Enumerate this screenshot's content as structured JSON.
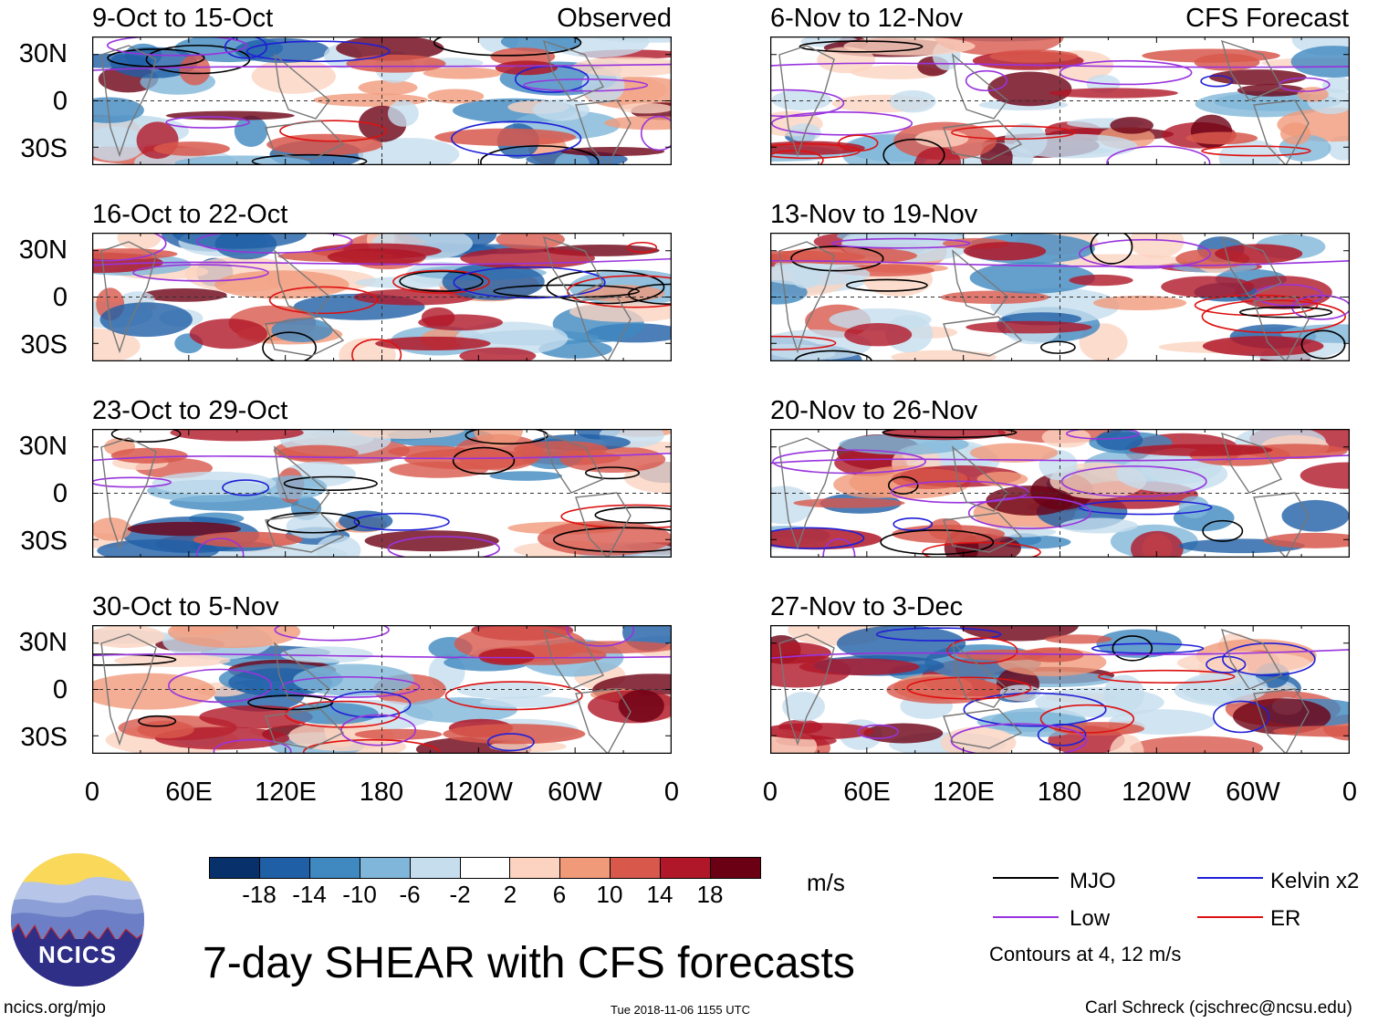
{
  "page": {
    "title": "7-day SHEAR with CFS forecasts",
    "url": "ncics.org/mjo",
    "timestamp": "Tue 2018-11-06 1155 UTC",
    "credit": "Carl Schreck (cjschrec@ncsu.edu)"
  },
  "logo": {
    "text": "NCICS"
  },
  "columns": {
    "observed_label": "Observed",
    "forecast_label": "CFS Forecast"
  },
  "panels": {
    "obs": [
      {
        "title": "9-Oct to 15-Oct"
      },
      {
        "title": "16-Oct to 22-Oct"
      },
      {
        "title": "23-Oct to 29-Oct"
      },
      {
        "title": "30-Oct to 5-Nov"
      }
    ],
    "fcst": [
      {
        "title": "6-Nov to 12-Nov"
      },
      {
        "title": "13-Nov to 19-Nov"
      },
      {
        "title": "20-Nov to 26-Nov"
      },
      {
        "title": "27-Nov to 3-Dec"
      }
    ]
  },
  "axes": {
    "lat_labels": [
      "30N",
      "0",
      "30S"
    ],
    "lon_labels": [
      "0",
      "60E",
      "120E",
      "180",
      "120W",
      "60W",
      "0"
    ]
  },
  "colorbar": {
    "unit": "m/s",
    "tick_labels": [
      "-18",
      "-14",
      "-10",
      "-6",
      "-2",
      "2",
      "6",
      "10",
      "14",
      "18"
    ],
    "colors": [
      "#08306b",
      "#1f5fa6",
      "#3f88c0",
      "#7fb6d9",
      "#c6ddee",
      "#ffffff",
      "#fbd3c0",
      "#f09a7a",
      "#d8584c",
      "#b01728",
      "#6b0014"
    ]
  },
  "legend": {
    "items": [
      {
        "label": "MJO",
        "color": "#000000"
      },
      {
        "label": "Kelvin x2",
        "color": "#1f1fd6"
      },
      {
        "label": "Low",
        "color": "#9933dd"
      },
      {
        "label": "ER",
        "color": "#dd1111"
      }
    ],
    "contour_note": "Contours at 4, 12 m/s"
  }
}
